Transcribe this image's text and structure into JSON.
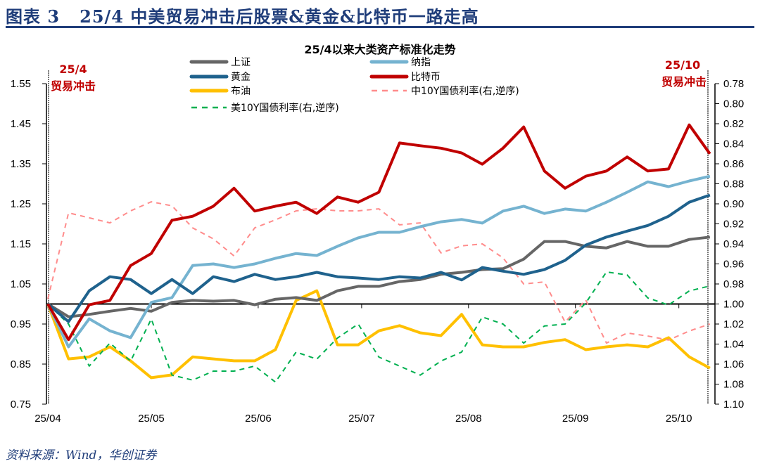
{
  "title": "图表 3   25/4 中美贸易冲击后股票&黄金&比特币一路走高",
  "source": "资料来源：Wind，华创证券",
  "chart_data": {
    "type": "line",
    "title": "25/4以来大类资产标准化走势",
    "xlabel": "",
    "ylabel": "",
    "x_ticks": [
      "25/04",
      "25/05",
      "25/06",
      "25/07",
      "25/08",
      "25/09",
      "25/10"
    ],
    "x": [
      "2025-04-01",
      "2025-04-07",
      "2025-04-13",
      "2025-04-19",
      "2025-04-25",
      "2025-05-01",
      "2025-05-07",
      "2025-05-13",
      "2025-05-19",
      "2025-05-25",
      "2025-05-31",
      "2025-06-06",
      "2025-06-12",
      "2025-06-18",
      "2025-06-24",
      "2025-06-30",
      "2025-07-06",
      "2025-07-12",
      "2025-07-18",
      "2025-07-24",
      "2025-07-30",
      "2025-08-05",
      "2025-08-11",
      "2025-08-17",
      "2025-08-23",
      "2025-08-29",
      "2025-09-04",
      "2025-09-10",
      "2025-09-16",
      "2025-09-22",
      "2025-09-28",
      "2025-10-04",
      "2025-10-10"
    ],
    "ylim": [
      0.75,
      1.55
    ],
    "y_ticks": [
      "0.75",
      "0.85",
      "0.95",
      "1.05",
      "1.15",
      "1.25",
      "1.35",
      "1.45",
      "1.55"
    ],
    "y2lim": [
      0.78,
      1.1
    ],
    "y2_reversed": true,
    "y2_ticks": [
      "0.78",
      "0.80",
      "0.82",
      "0.84",
      "0.86",
      "0.88",
      "0.90",
      "0.92",
      "0.94",
      "0.96",
      "0.98",
      "1.00",
      "1.02",
      "1.04",
      "1.06",
      "1.08",
      "1.10"
    ],
    "grid": false,
    "legend_position": "top",
    "series": [
      {
        "name": "上证",
        "axis": "left",
        "color": "#666666",
        "dash": false,
        "values": [
          1.0,
          0.968,
          0.974,
          0.982,
          0.989,
          0.982,
          1.004,
          1.009,
          1.007,
          1.009,
          0.998,
          1.012,
          1.016,
          1.009,
          1.033,
          1.044,
          1.044,
          1.056,
          1.061,
          1.074,
          1.079,
          1.086,
          1.088,
          1.112,
          1.156,
          1.156,
          1.144,
          1.14,
          1.156,
          1.144,
          1.144,
          1.161,
          1.167
        ]
      },
      {
        "name": "纳指",
        "axis": "left",
        "color": "#75b3d0",
        "dash": false,
        "values": [
          1.0,
          0.893,
          0.963,
          0.933,
          0.916,
          1.004,
          1.016,
          1.096,
          1.1,
          1.091,
          1.1,
          1.114,
          1.126,
          1.121,
          1.144,
          1.165,
          1.179,
          1.179,
          1.193,
          1.205,
          1.211,
          1.202,
          1.232,
          1.244,
          1.226,
          1.237,
          1.232,
          1.254,
          1.279,
          1.305,
          1.293,
          1.307,
          1.319
        ]
      },
      {
        "name": "黄金",
        "axis": "left",
        "color": "#1f628d",
        "dash": false,
        "values": [
          1.0,
          0.956,
          1.033,
          1.068,
          1.061,
          1.026,
          1.061,
          1.026,
          1.068,
          1.056,
          1.074,
          1.061,
          1.068,
          1.079,
          1.068,
          1.065,
          1.061,
          1.068,
          1.065,
          1.079,
          1.06,
          1.091,
          1.082,
          1.074,
          1.086,
          1.109,
          1.147,
          1.167,
          1.182,
          1.196,
          1.219,
          1.254,
          1.272
        ]
      },
      {
        "name": "比特币",
        "axis": "left",
        "color": "#c00000",
        "dash": false,
        "values": [
          1.0,
          0.911,
          0.998,
          1.009,
          1.096,
          1.126,
          1.209,
          1.219,
          1.244,
          1.289,
          1.232,
          1.244,
          1.254,
          1.226,
          1.267,
          1.254,
          1.279,
          1.402,
          1.395,
          1.389,
          1.377,
          1.349,
          1.389,
          1.442,
          1.332,
          1.289,
          1.319,
          1.332,
          1.367,
          1.332,
          1.337,
          1.447,
          1.375
        ]
      },
      {
        "name": "布油",
        "axis": "left",
        "color": "#ffc000",
        "dash": false,
        "values": [
          1.0,
          0.863,
          0.868,
          0.893,
          0.858,
          0.816,
          0.823,
          0.868,
          0.863,
          0.858,
          0.858,
          0.886,
          1.009,
          1.033,
          0.898,
          0.898,
          0.933,
          0.946,
          0.928,
          0.921,
          0.974,
          0.898,
          0.893,
          0.893,
          0.904,
          0.911,
          0.886,
          0.893,
          0.898,
          0.893,
          0.916,
          0.868,
          0.84
        ]
      },
      {
        "name": "中10Y国债利率(右,逆序)",
        "axis": "right",
        "color": "#ff8c8c",
        "dash": true,
        "values": [
          0.995,
          0.909,
          0.914,
          0.919,
          0.907,
          0.898,
          0.902,
          0.924,
          0.935,
          0.952,
          0.924,
          0.916,
          0.907,
          0.905,
          0.907,
          0.907,
          0.905,
          0.921,
          0.919,
          0.949,
          0.942,
          0.94,
          0.954,
          0.98,
          0.978,
          1.018,
          0.996,
          1.039,
          1.029,
          1.032,
          1.036,
          1.027,
          1.02
        ]
      },
      {
        "name": "美10Y国债利率(右,逆序)",
        "axis": "right",
        "color": "#00b050",
        "dash": true,
        "values": [
          1.0,
          1.02,
          1.062,
          1.039,
          1.057,
          1.015,
          1.071,
          1.076,
          1.067,
          1.067,
          1.062,
          1.078,
          1.048,
          1.055,
          1.034,
          1.02,
          1.053,
          1.062,
          1.071,
          1.057,
          1.048,
          1.013,
          1.02,
          1.039,
          1.022,
          1.02,
          0.999,
          0.968,
          0.971,
          0.994,
          1.001,
          0.987,
          0.982
        ]
      }
    ],
    "annotations": [
      {
        "date": "25/4",
        "label": "贸易冲击"
      },
      {
        "date": "25/10",
        "label": "贸易冲击"
      }
    ]
  }
}
